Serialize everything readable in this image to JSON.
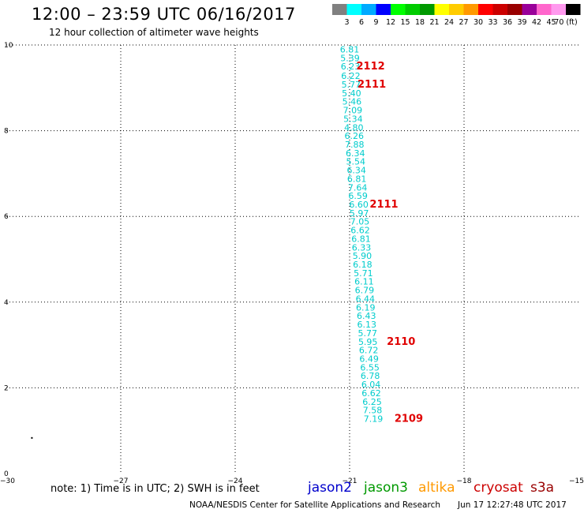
{
  "header": {
    "title": "12:00 – 23:59 UTC 06/16/2017",
    "subtitle": "12 hour collection of altimeter wave heights"
  },
  "color_scale": {
    "colors": [
      "#808080",
      "#00ffff",
      "#00aaff",
      "#0000ff",
      "#00ff00",
      "#00cc00",
      "#009900",
      "#ffff00",
      "#ffcc00",
      "#ff9900",
      "#ff0000",
      "#cc0000",
      "#990000",
      "#990099",
      "#ff66cc",
      "#ff99ee",
      "#000000"
    ],
    "labels": [
      "3",
      "6",
      "9",
      "12",
      "15",
      "18",
      "21",
      "24",
      "27",
      "30",
      "33",
      "36",
      "39",
      "42",
      "45",
      "70 (ft)"
    ]
  },
  "note": "note:  1) Time is in UTC; 2) SWH is in feet",
  "satellites": [
    {
      "name": "jason2",
      "color": "#0000cc"
    },
    {
      "name": "jason3",
      "color": "#009900"
    },
    {
      "name": "altika",
      "color": "#ff9900"
    },
    {
      "name": "cryosat",
      "color": "#cc0000"
    },
    {
      "name": "s3a",
      "color": "#990000"
    }
  ],
  "footer": {
    "credit": "NOAA/NESDIS Center for Satellite Applications and Research",
    "timestamp": "Jun 17 12:27:48 UTC 2017"
  },
  "chart_data": {
    "type": "scatter",
    "xlim": [
      -30,
      -15
    ],
    "ylim": [
      0,
      10
    ],
    "x_ticks": [
      "−30",
      "−27",
      "−24",
      "−21",
      "−18",
      "−15"
    ],
    "y_ticks": [
      "0",
      "2",
      "4",
      "6",
      "8",
      "10"
    ],
    "grid": true,
    "point_color": "#00cccc",
    "points": [
      {
        "lon": -21.0,
        "lat": 9.9,
        "swh": "6.81"
      },
      {
        "lon": -20.99,
        "lat": 9.7,
        "swh": "5.39"
      },
      {
        "lon": -20.98,
        "lat": 9.5,
        "swh": "6.23"
      },
      {
        "lon": -20.97,
        "lat": 9.28,
        "swh": "6.22"
      },
      {
        "lon": -20.96,
        "lat": 9.08,
        "swh": "5.77"
      },
      {
        "lon": -20.95,
        "lat": 8.88,
        "swh": "5.40"
      },
      {
        "lon": -20.94,
        "lat": 8.68,
        "swh": "5.46"
      },
      {
        "lon": -20.92,
        "lat": 8.48,
        "swh": "7.09"
      },
      {
        "lon": -20.91,
        "lat": 8.28,
        "swh": "5.34"
      },
      {
        "lon": -20.89,
        "lat": 8.08,
        "swh": "4.80"
      },
      {
        "lon": -20.88,
        "lat": 7.88,
        "swh": "6.26"
      },
      {
        "lon": -20.87,
        "lat": 7.68,
        "swh": "7.88"
      },
      {
        "lon": -20.85,
        "lat": 7.48,
        "swh": "6.34"
      },
      {
        "lon": -20.84,
        "lat": 7.28,
        "swh": "5.54"
      },
      {
        "lon": -20.82,
        "lat": 7.08,
        "swh": "6.34"
      },
      {
        "lon": -20.81,
        "lat": 6.88,
        "swh": "6.81"
      },
      {
        "lon": -20.79,
        "lat": 6.68,
        "swh": "7.64"
      },
      {
        "lon": -20.78,
        "lat": 6.48,
        "swh": "6.59"
      },
      {
        "lon": -20.76,
        "lat": 6.28,
        "swh": "6.60"
      },
      {
        "lon": -20.75,
        "lat": 6.08,
        "swh": "5.97"
      },
      {
        "lon": -20.73,
        "lat": 5.88,
        "swh": "7.05"
      },
      {
        "lon": -20.72,
        "lat": 5.68,
        "swh": "6.62"
      },
      {
        "lon": -20.7,
        "lat": 5.48,
        "swh": "6.81"
      },
      {
        "lon": -20.69,
        "lat": 5.28,
        "swh": "6.33"
      },
      {
        "lon": -20.67,
        "lat": 5.08,
        "swh": "5.90"
      },
      {
        "lon": -20.66,
        "lat": 4.88,
        "swh": "6.18"
      },
      {
        "lon": -20.64,
        "lat": 4.68,
        "swh": "5.71"
      },
      {
        "lon": -20.62,
        "lat": 4.48,
        "swh": "6.11"
      },
      {
        "lon": -20.61,
        "lat": 4.28,
        "swh": "6.79"
      },
      {
        "lon": -20.59,
        "lat": 4.08,
        "swh": "6.44"
      },
      {
        "lon": -20.58,
        "lat": 3.88,
        "swh": "6.19"
      },
      {
        "lon": -20.56,
        "lat": 3.68,
        "swh": "6.43"
      },
      {
        "lon": -20.55,
        "lat": 3.48,
        "swh": "6.13"
      },
      {
        "lon": -20.53,
        "lat": 3.28,
        "swh": "5.77"
      },
      {
        "lon": -20.52,
        "lat": 3.08,
        "swh": "5.95"
      },
      {
        "lon": -20.5,
        "lat": 2.88,
        "swh": "6.72"
      },
      {
        "lon": -20.49,
        "lat": 2.68,
        "swh": "6.49"
      },
      {
        "lon": -20.47,
        "lat": 2.48,
        "swh": "6.55"
      },
      {
        "lon": -20.46,
        "lat": 2.28,
        "swh": "6.78"
      },
      {
        "lon": -20.44,
        "lat": 2.08,
        "swh": "6.04"
      },
      {
        "lon": -20.43,
        "lat": 1.88,
        "swh": "6.62"
      },
      {
        "lon": -20.41,
        "lat": 1.68,
        "swh": "6.25"
      },
      {
        "lon": -20.4,
        "lat": 1.48,
        "swh": "7.58"
      },
      {
        "lon": -20.38,
        "lat": 1.28,
        "swh": "7.19"
      }
    ],
    "time_labels": [
      {
        "lon": -20.45,
        "lat": 9.5,
        "text": "2112"
      },
      {
        "lon": -20.42,
        "lat": 9.08,
        "text": "2111"
      },
      {
        "lon": -20.1,
        "lat": 6.28,
        "text": "2111"
      },
      {
        "lon": -19.65,
        "lat": 3.08,
        "text": "2110"
      },
      {
        "lon": -19.45,
        "lat": 1.28,
        "text": "2109"
      }
    ],
    "time_label_color": "#e00000",
    "stray_marks": [
      {
        "lon": -29.35,
        "lat": 0.85
      }
    ]
  }
}
